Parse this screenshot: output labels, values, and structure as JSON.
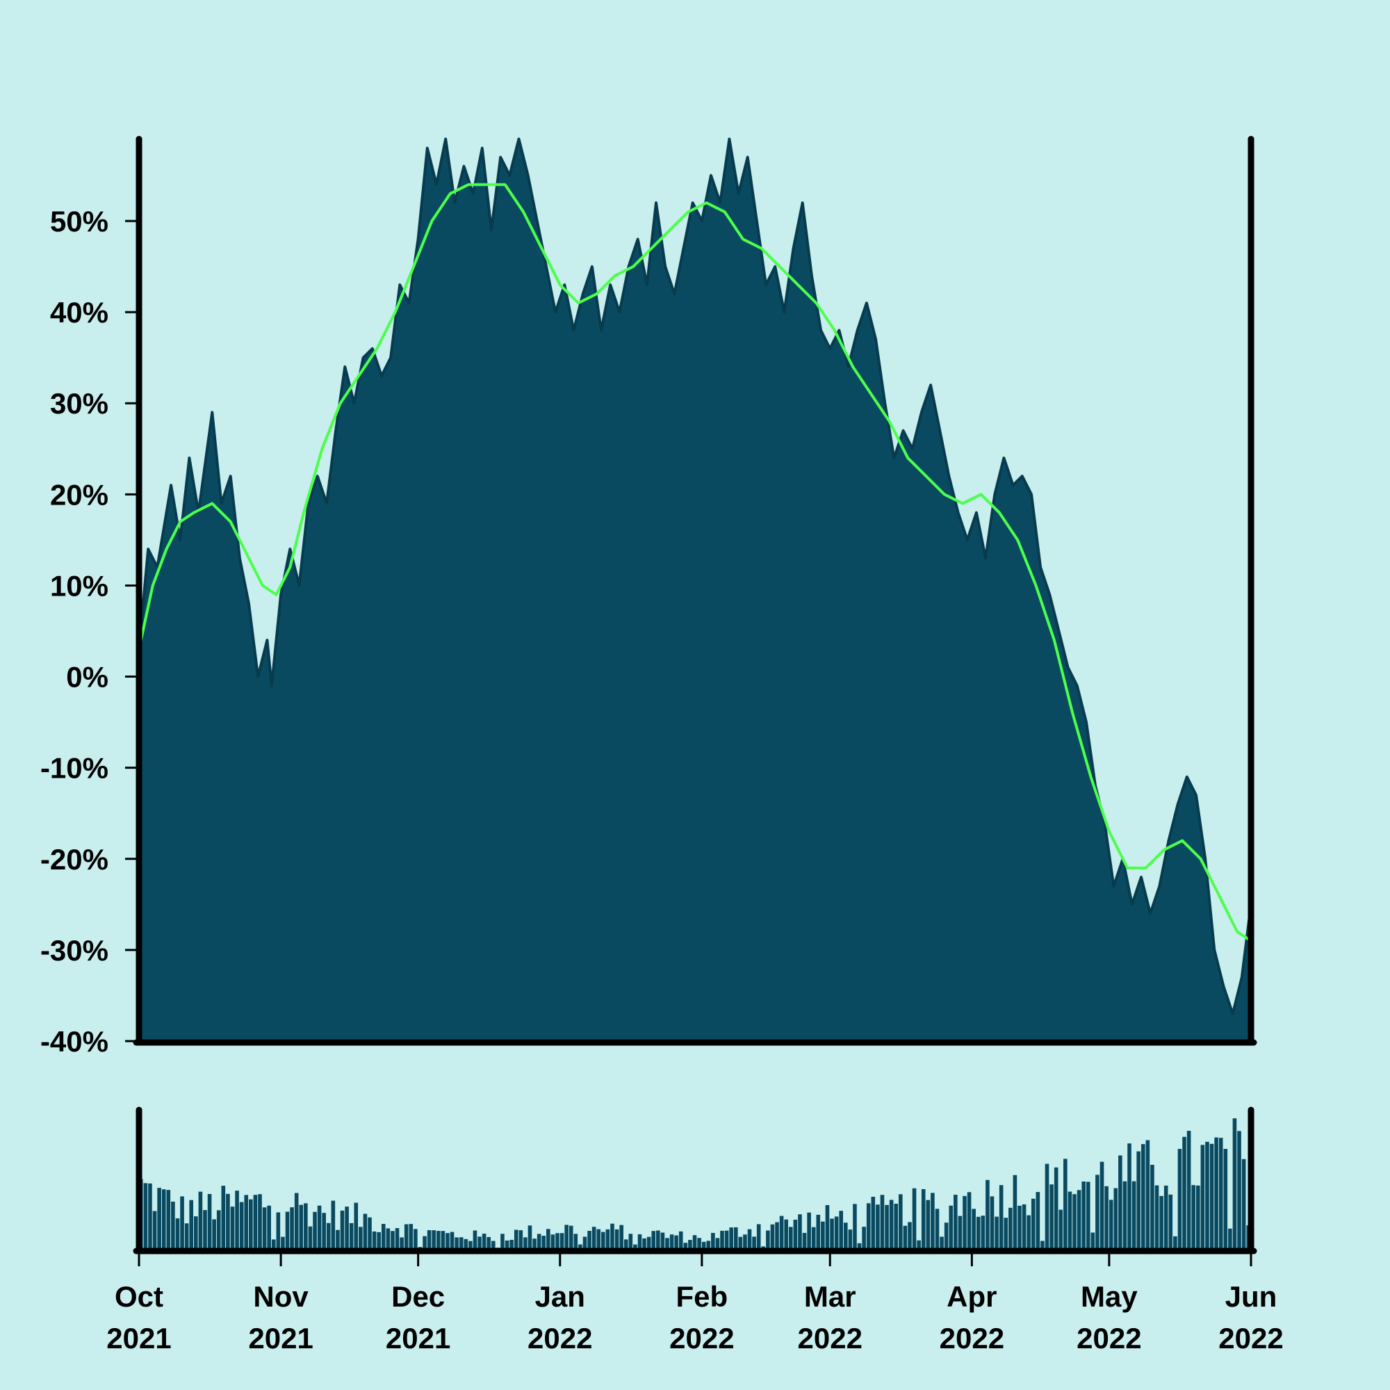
{
  "colors": {
    "background": "#c9eeee",
    "area_fill": "#0a4a61",
    "area_edge": "#073b4e",
    "moving_average": "#4cff4c",
    "axis": "#000000"
  },
  "chart_data": [
    {
      "type": "area",
      "panel": "price",
      "title": "",
      "xlabel": "",
      "ylabel": "",
      "ylim": [
        -40,
        59
      ],
      "y_ticks": [
        -40,
        -30,
        -20,
        -10,
        0,
        10,
        20,
        30,
        40,
        50
      ],
      "y_tick_labels": [
        "-40%",
        "-30%",
        "-20%",
        "-10%",
        "0%",
        "10%",
        "20%",
        "30%",
        "40%",
        "50%"
      ],
      "grid": false,
      "legend": "none",
      "x_range": [
        "2021-10-01",
        "2022-06-01"
      ],
      "series": [
        {
          "style": "filled-area",
          "points": [
            [
              "2021-10-01",
              3
            ],
            [
              "2021-10-03",
              14
            ],
            [
              "2021-10-05",
              12
            ],
            [
              "2021-10-08",
              21
            ],
            [
              "2021-10-10",
              15
            ],
            [
              "2021-10-12",
              24
            ],
            [
              "2021-10-14",
              18
            ],
            [
              "2021-10-17",
              29
            ],
            [
              "2021-10-19",
              19
            ],
            [
              "2021-10-21",
              22
            ],
            [
              "2021-10-23",
              13
            ],
            [
              "2021-10-25",
              8
            ],
            [
              "2021-10-27",
              0
            ],
            [
              "2021-10-29",
              4
            ],
            [
              "2021-10-30",
              -1
            ],
            [
              "2021-11-01",
              9
            ],
            [
              "2021-11-03",
              14
            ],
            [
              "2021-11-05",
              10
            ],
            [
              "2021-11-07",
              19
            ],
            [
              "2021-11-09",
              22
            ],
            [
              "2021-11-11",
              19
            ],
            [
              "2021-11-13",
              27
            ],
            [
              "2021-11-15",
              34
            ],
            [
              "2021-11-17",
              30
            ],
            [
              "2021-11-19",
              35
            ],
            [
              "2021-11-21",
              36
            ],
            [
              "2021-11-23",
              33
            ],
            [
              "2021-11-25",
              35
            ],
            [
              "2021-11-27",
              43
            ],
            [
              "2021-11-29",
              41
            ],
            [
              "2021-12-01",
              48
            ],
            [
              "2021-12-03",
              58
            ],
            [
              "2021-12-05",
              54
            ],
            [
              "2021-12-07",
              59
            ],
            [
              "2021-12-09",
              52
            ],
            [
              "2021-12-11",
              56
            ],
            [
              "2021-12-13",
              53
            ],
            [
              "2021-12-15",
              58
            ],
            [
              "2021-12-17",
              49
            ],
            [
              "2021-12-19",
              57
            ],
            [
              "2021-12-21",
              55
            ],
            [
              "2021-12-23",
              59
            ],
            [
              "2021-12-25",
              55
            ],
            [
              "2021-12-27",
              50
            ],
            [
              "2021-12-29",
              45
            ],
            [
              "2021-12-31",
              40
            ],
            [
              "2022-01-02",
              43
            ],
            [
              "2022-01-04",
              38
            ],
            [
              "2022-01-06",
              42
            ],
            [
              "2022-01-08",
              45
            ],
            [
              "2022-01-10",
              38
            ],
            [
              "2022-01-12",
              43
            ],
            [
              "2022-01-14",
              40
            ],
            [
              "2022-01-16",
              45
            ],
            [
              "2022-01-18",
              48
            ],
            [
              "2022-01-20",
              43
            ],
            [
              "2022-01-22",
              52
            ],
            [
              "2022-01-24",
              45
            ],
            [
              "2022-01-26",
              42
            ],
            [
              "2022-01-28",
              47
            ],
            [
              "2022-01-30",
              52
            ],
            [
              "2022-02-01",
              50
            ],
            [
              "2022-02-03",
              55
            ],
            [
              "2022-02-05",
              52
            ],
            [
              "2022-02-07",
              59
            ],
            [
              "2022-02-09",
              53
            ],
            [
              "2022-02-11",
              57
            ],
            [
              "2022-02-13",
              50
            ],
            [
              "2022-02-15",
              43
            ],
            [
              "2022-02-17",
              45
            ],
            [
              "2022-02-19",
              40
            ],
            [
              "2022-02-21",
              47
            ],
            [
              "2022-02-23",
              52
            ],
            [
              "2022-02-25",
              44
            ],
            [
              "2022-02-27",
              38
            ],
            [
              "2022-03-01",
              36
            ],
            [
              "2022-03-03",
              38
            ],
            [
              "2022-03-05",
              34
            ],
            [
              "2022-03-07",
              38
            ],
            [
              "2022-03-09",
              41
            ],
            [
              "2022-03-11",
              37
            ],
            [
              "2022-03-13",
              30
            ],
            [
              "2022-03-15",
              24
            ],
            [
              "2022-03-17",
              27
            ],
            [
              "2022-03-19",
              25
            ],
            [
              "2022-03-21",
              29
            ],
            [
              "2022-03-23",
              32
            ],
            [
              "2022-03-25",
              27
            ],
            [
              "2022-03-27",
              22
            ],
            [
              "2022-03-29",
              18
            ],
            [
              "2022-03-31",
              15
            ],
            [
              "2022-04-02",
              18
            ],
            [
              "2022-04-04",
              13
            ],
            [
              "2022-04-06",
              20
            ],
            [
              "2022-04-08",
              24
            ],
            [
              "2022-04-10",
              21
            ],
            [
              "2022-04-12",
              22
            ],
            [
              "2022-04-14",
              20
            ],
            [
              "2022-04-16",
              12
            ],
            [
              "2022-04-18",
              9
            ],
            [
              "2022-04-20",
              5
            ],
            [
              "2022-04-22",
              1
            ],
            [
              "2022-04-24",
              -1
            ],
            [
              "2022-04-26",
              -5
            ],
            [
              "2022-04-28",
              -12
            ],
            [
              "2022-04-30",
              -16
            ],
            [
              "2022-05-02",
              -23
            ],
            [
              "2022-05-04",
              -20
            ],
            [
              "2022-05-06",
              -25
            ],
            [
              "2022-05-08",
              -22
            ],
            [
              "2022-05-10",
              -26
            ],
            [
              "2022-05-12",
              -23
            ],
            [
              "2022-05-14",
              -18
            ],
            [
              "2022-05-16",
              -14
            ],
            [
              "2022-05-18",
              -11
            ],
            [
              "2022-05-20",
              -13
            ],
            [
              "2022-05-22",
              -20
            ],
            [
              "2022-05-24",
              -30
            ],
            [
              "2022-05-26",
              -34
            ],
            [
              "2022-05-28",
              -37
            ],
            [
              "2022-05-30",
              -33
            ],
            [
              "2022-06-01",
              -25
            ]
          ]
        },
        {
          "style": "moving-average-line",
          "points": [
            [
              "2021-10-01",
              3
            ],
            [
              "2021-10-04",
              10
            ],
            [
              "2021-10-07",
              14
            ],
            [
              "2021-10-10",
              17
            ],
            [
              "2021-10-13",
              18
            ],
            [
              "2021-10-17",
              19
            ],
            [
              "2021-10-21",
              17
            ],
            [
              "2021-10-25",
              13
            ],
            [
              "2021-10-28",
              10
            ],
            [
              "2021-10-31",
              9
            ],
            [
              "2021-11-03",
              12
            ],
            [
              "2021-11-06",
              18
            ],
            [
              "2021-11-10",
              25
            ],
            [
              "2021-11-14",
              30
            ],
            [
              "2021-11-18",
              33
            ],
            [
              "2021-11-22",
              36
            ],
            [
              "2021-11-26",
              40
            ],
            [
              "2021-11-30",
              45
            ],
            [
              "2021-12-04",
              50
            ],
            [
              "2021-12-08",
              53
            ],
            [
              "2021-12-12",
              54
            ],
            [
              "2021-12-16",
              54
            ],
            [
              "2021-12-20",
              54
            ],
            [
              "2021-12-24",
              51
            ],
            [
              "2021-12-28",
              47
            ],
            [
              "2022-01-01",
              43
            ],
            [
              "2022-01-05",
              41
            ],
            [
              "2022-01-09",
              42
            ],
            [
              "2022-01-13",
              44
            ],
            [
              "2022-01-17",
              45
            ],
            [
              "2022-01-21",
              47
            ],
            [
              "2022-01-25",
              49
            ],
            [
              "2022-01-29",
              51
            ],
            [
              "2022-02-02",
              52
            ],
            [
              "2022-02-06",
              51
            ],
            [
              "2022-02-10",
              48
            ],
            [
              "2022-02-14",
              47
            ],
            [
              "2022-02-18",
              45
            ],
            [
              "2022-02-22",
              43
            ],
            [
              "2022-02-26",
              41
            ],
            [
              "2022-03-02",
              38
            ],
            [
              "2022-03-06",
              34
            ],
            [
              "2022-03-10",
              31
            ],
            [
              "2022-03-14",
              28
            ],
            [
              "2022-03-18",
              24
            ],
            [
              "2022-03-22",
              22
            ],
            [
              "2022-03-26",
              20
            ],
            [
              "2022-03-30",
              19
            ],
            [
              "2022-04-03",
              20
            ],
            [
              "2022-04-07",
              18
            ],
            [
              "2022-04-11",
              15
            ],
            [
              "2022-04-15",
              10
            ],
            [
              "2022-04-19",
              4
            ],
            [
              "2022-04-23",
              -4
            ],
            [
              "2022-04-27",
              -11
            ],
            [
              "2022-05-01",
              -17
            ],
            [
              "2022-05-05",
              -21
            ],
            [
              "2022-05-09",
              -21
            ],
            [
              "2022-05-13",
              -19
            ],
            [
              "2022-05-17",
              -18
            ],
            [
              "2022-05-21",
              -20
            ],
            [
              "2022-05-25",
              -24
            ],
            [
              "2022-05-29",
              -28
            ],
            [
              "2022-06-01",
              -29
            ]
          ]
        }
      ]
    },
    {
      "type": "bar",
      "panel": "volume",
      "x_range": [
        "2021-10-01",
        "2022-06-01"
      ],
      "ylim": [
        0,
        100
      ],
      "x_ticks": [
        "2021-10-01",
        "2021-11-01",
        "2021-12-01",
        "2022-01-01",
        "2022-02-01",
        "2022-03-01",
        "2022-04-01",
        "2022-05-01",
        "2022-06-01"
      ],
      "x_tick_labels": [
        [
          "Oct",
          "2021"
        ],
        [
          "Nov",
          "2021"
        ],
        [
          "Dec",
          "2021"
        ],
        [
          "Jan",
          "2022"
        ],
        [
          "Feb",
          "2022"
        ],
        [
          "Mar",
          "2022"
        ],
        [
          "Apr",
          "2022"
        ],
        [
          "May",
          "2022"
        ],
        [
          "Jun",
          "2022"
        ]
      ],
      "volume_profile": [
        [
          "2021-10-01",
          46
        ],
        [
          "2021-10-10",
          30
        ],
        [
          "2021-10-20",
          34
        ],
        [
          "2021-11-01",
          36
        ],
        [
          "2021-11-10",
          28
        ],
        [
          "2021-11-20",
          23
        ],
        [
          "2021-12-01",
          14
        ],
        [
          "2021-12-15",
          10
        ],
        [
          "2022-01-01",
          16
        ],
        [
          "2022-01-15",
          14
        ],
        [
          "2022-02-01",
          9
        ],
        [
          "2022-02-15",
          19
        ],
        [
          "2022-03-01",
          24
        ],
        [
          "2022-03-15",
          30
        ],
        [
          "2022-04-01",
          38
        ],
        [
          "2022-04-15",
          46
        ],
        [
          "2022-05-01",
          54
        ],
        [
          "2022-05-15",
          60
        ],
        [
          "2022-05-25",
          68
        ],
        [
          "2022-06-01",
          70
        ]
      ]
    }
  ]
}
